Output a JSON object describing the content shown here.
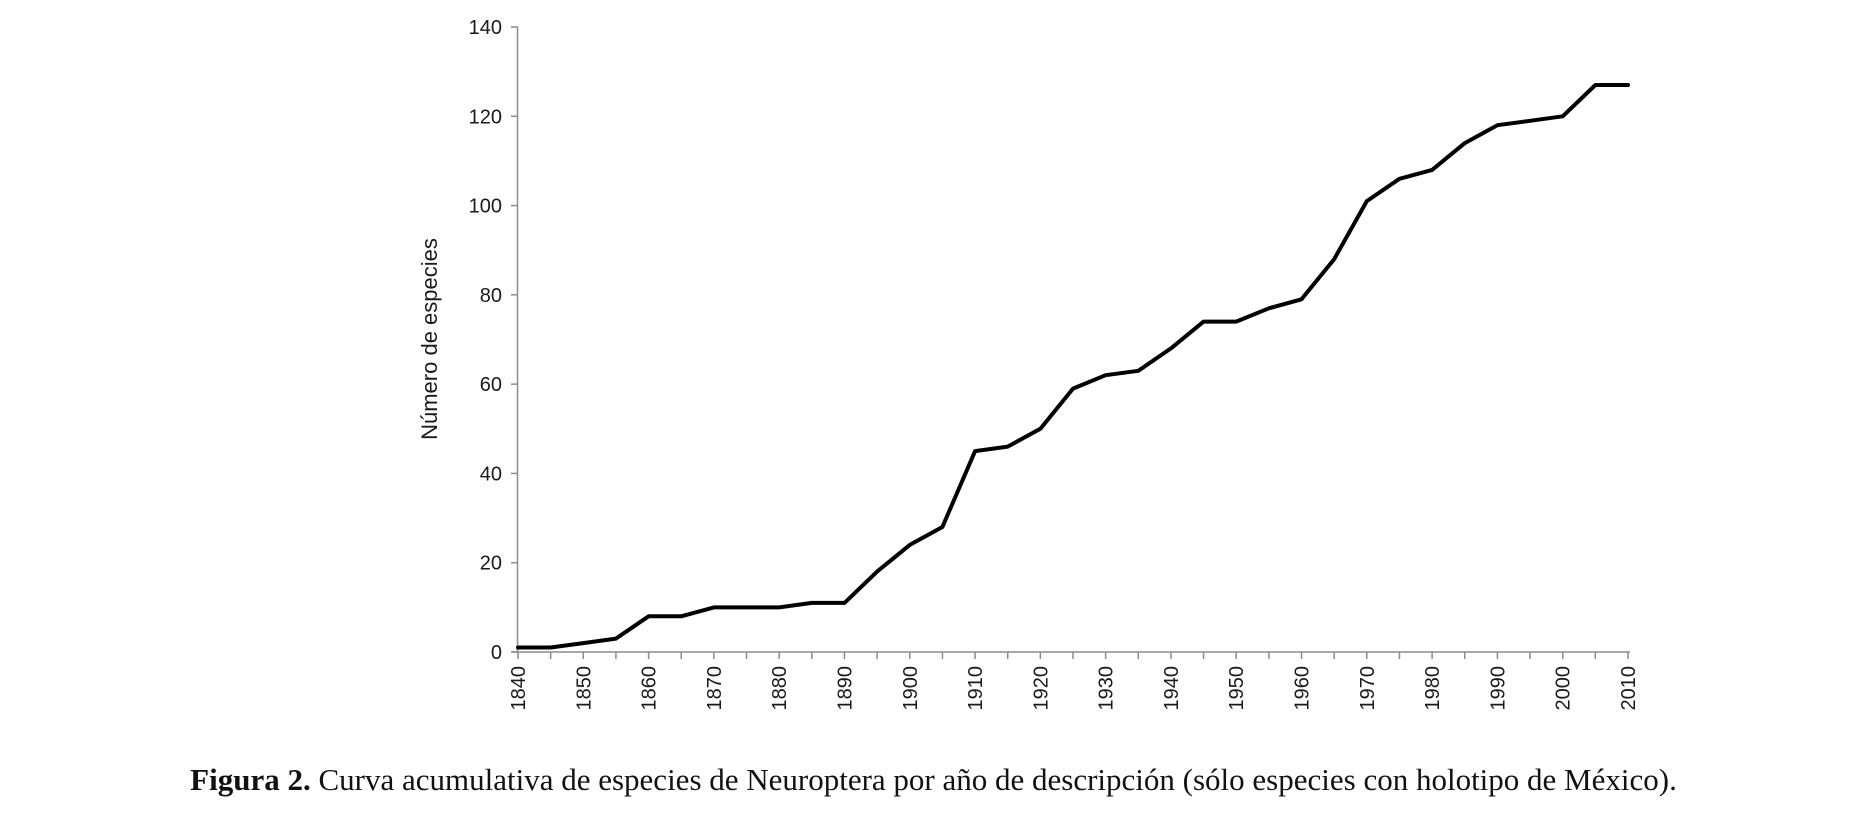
{
  "caption": {
    "label": "Figura 2.",
    "text": "Curva acumulativa de especies de Neuroptera por año de descripción (sólo especies con holotipo de México)."
  },
  "chart_data": {
    "type": "line",
    "title": "",
    "xlabel": "",
    "ylabel": "Número de especies",
    "xlim": [
      1840,
      2010
    ],
    "ylim": [
      0,
      140
    ],
    "grid": false,
    "legend": "none",
    "line_color": "#000000",
    "yticks": [
      0,
      20,
      40,
      60,
      80,
      100,
      120,
      140
    ],
    "xtick_labels": [
      "1840",
      "1850",
      "1860",
      "1870",
      "1880",
      "1890",
      "1900",
      "1910",
      "1920",
      "1930",
      "1940",
      "1950",
      "1960",
      "1970",
      "1980",
      "1990",
      "2000",
      "2010"
    ],
    "x": [
      1840,
      1845,
      1850,
      1855,
      1860,
      1865,
      1870,
      1875,
      1880,
      1885,
      1890,
      1895,
      1900,
      1905,
      1910,
      1915,
      1920,
      1925,
      1930,
      1935,
      1940,
      1945,
      1950,
      1955,
      1960,
      1965,
      1970,
      1975,
      1980,
      1985,
      1990,
      1995,
      2000,
      2005,
      2010
    ],
    "series": [
      {
        "values": [
          1,
          1,
          2,
          3,
          8,
          8,
          10,
          10,
          10,
          11,
          11,
          18,
          24,
          28,
          45,
          46,
          50,
          59,
          62,
          63,
          68,
          74,
          74,
          77,
          79,
          88,
          101,
          106,
          108,
          114,
          118,
          119,
          120,
          127,
          127
        ]
      }
    ]
  }
}
